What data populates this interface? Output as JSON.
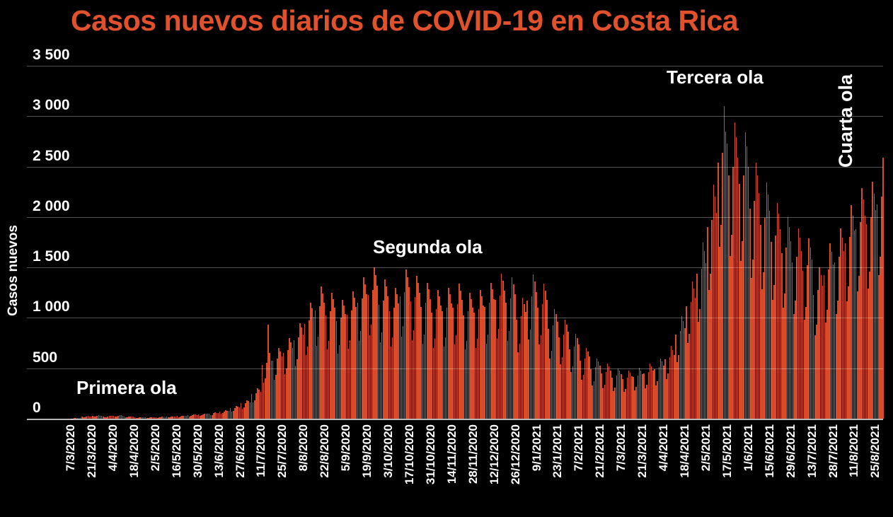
{
  "title": "Casos nuevos diarios de COVID-19 en Costa Rica",
  "colors": {
    "background": "#000000",
    "title": "#E0512C",
    "bar": "#D94A28",
    "text": "#FFFFFF",
    "gridline": "rgba(255,255,255,0.32)"
  },
  "chart_data": {
    "type": "bar",
    "title": "Casos nuevos diarios de COVID-19 en Costa Rica",
    "xlabel": "",
    "ylabel": "Casos nuevos",
    "ylim": [
      0,
      3500
    ],
    "grid": true,
    "legend": "none",
    "y_ticks": [
      {
        "label": "3 500",
        "value": 3500
      },
      {
        "label": "3 000",
        "value": 3000
      },
      {
        "label": "2 500",
        "value": 2500
      },
      {
        "label": "2 000",
        "value": 2000
      },
      {
        "label": "1 500",
        "value": 1500
      },
      {
        "label": "1 000",
        "value": 1000
      },
      {
        "label": "500",
        "value": 500
      },
      {
        "label": "0",
        "value": 0
      }
    ],
    "x_tick_every": 14,
    "x_tick_labels": [
      "7/3/2020",
      "21/3/2020",
      "4/4/2020",
      "18/4/2020",
      "2/5/2020",
      "16/5/2020",
      "30/5/2020",
      "13/6/2020",
      "27/6/2020",
      "11/7/2020",
      "25/7/2020",
      "8/8/2020",
      "22/8/2020",
      "5/9/2020",
      "19/9/2020",
      "3/10/2020",
      "17/10/2020",
      "31/10/2020",
      "14/11/2020",
      "28/11/2020",
      "12/12/2020",
      "26/12/2020",
      "9/1/2021",
      "23/1/2021",
      "7/2/2021",
      "21/2/2021",
      "7/3/2021",
      "21/3/2021",
      "4/4/2021",
      "18/4/2021",
      "2/5/2021",
      "17/5/2021",
      "1/6/2021",
      "15/6/2021",
      "29/6/2021",
      "13/7/2021",
      "28/7/2021",
      "11/8/2021",
      "25/8/2021"
    ],
    "start_date": "7/3/2020",
    "end_date": "25/8/2021",
    "annotations": [
      {
        "text": "Primera ola",
        "orientation": "horizontal"
      },
      {
        "text": "Segunda ola",
        "orientation": "horizontal"
      },
      {
        "text": "Tercera ola",
        "orientation": "horizontal"
      },
      {
        "text": "Cuarta ola",
        "orientation": "vertical"
      }
    ],
    "values": [
      1,
      2,
      4,
      5,
      9,
      8,
      7,
      18,
      12,
      14,
      20,
      25,
      24,
      22,
      26,
      18,
      20,
      27,
      32,
      30,
      28,
      23,
      15,
      17,
      24,
      28,
      26,
      25,
      28,
      19,
      21,
      29,
      34,
      32,
      30,
      18,
      12,
      14,
      19,
      22,
      21,
      19,
      13,
      9,
      10,
      14,
      16,
      15,
      14,
      11,
      7,
      8,
      11,
      13,
      12,
      11,
      15,
      10,
      11,
      15,
      18,
      17,
      16,
      20,
      13,
      15,
      20,
      24,
      23,
      21,
      25,
      17,
      19,
      26,
      30,
      29,
      26,
      34,
      23,
      26,
      36,
      42,
      40,
      37,
      43,
      29,
      32,
      44,
      52,
      49,
      46,
      51,
      34,
      38,
      53,
      62,
      59,
      55,
      70,
      47,
      53,
      72,
      85,
      81,
      75,
      103,
      69,
      78,
      106,
      125,
      119,
      110,
      152,
      102,
      115,
      157,
      185,
      176,
      163,
      246,
      165,
      186,
      255,
      300,
      285,
      264,
      533,
      358,
      403,
      553,
      930,
      650,
      572,
      574,
      385,
      434,
      595,
      700,
      665,
      616,
      656,
      440,
      496,
      680,
      800,
      760,
      704,
      779,
      523,
      589,
      808,
      950,
      903,
      836,
      943,
      633,
      713,
      978,
      1150,
      1093,
      1012,
      1074,
      721,
      812,
      1114,
      1310,
      1245,
      1153,
      1025,
      688,
      775,
      1063,
      1250,
      1188,
      1100,
      968,
      649,
      732,
      1003,
      1180,
      1121,
      1038,
      1033,
      693,
      781,
      1071,
      1260,
      1197,
      1109,
      1148,
      770,
      868,
      1190,
      1400,
      1330,
      1232,
      1230,
      825,
      930,
      1275,
      1500,
      1425,
      1320,
      1132,
      759,
      856,
      1173,
      1380,
      1311,
      1214,
      1066,
      715,
      806,
      1105,
      1300,
      1235,
      1144,
      1214,
      814,
      918,
      1258,
      1480,
      1406,
      1302,
      1164,
      781,
      880,
      1207,
      1420,
      1349,
      1250,
      1107,
      743,
      837,
      1148,
      1350,
      1283,
      1188,
      1050,
      704,
      794,
      1088,
      1280,
      1216,
      1126,
      1066,
      715,
      806,
      1105,
      1300,
      1235,
      1144,
      1099,
      737,
      831,
      1139,
      1340,
      1273,
      1179,
      1025,
      688,
      775,
      1063,
      1250,
      1188,
      1100,
      1050,
      704,
      794,
      1088,
      1280,
      1216,
      1126,
      1107,
      743,
      837,
      1148,
      1350,
      1283,
      1188,
      1181,
      792,
      893,
      1224,
      1440,
      1368,
      1267,
      1148,
      770,
      868,
      1190,
      1400,
      1330,
      1232,
      984,
      660,
      744,
      1020,
      1200,
      1140,
      1056,
      1173,
      787,
      887,
      1216,
      1430,
      1359,
      1258,
      1099,
      737,
      831,
      1139,
      1340,
      1273,
      1179,
      894,
      600,
      676,
      927,
      1090,
      1036,
      959,
      804,
      539,
      608,
      833,
      980,
      931,
      862,
      689,
      462,
      521,
      714,
      840,
      798,
      739,
      574,
      385,
      434,
      595,
      700,
      665,
      616,
      492,
      330,
      372,
      510,
      600,
      570,
      528,
      447,
      300,
      338,
      463,
      545,
      518,
      480,
      410,
      275,
      310,
      425,
      500,
      475,
      440,
      394,
      264,
      298,
      408,
      480,
      456,
      422,
      414,
      278,
      313,
      429,
      505,
      480,
      444,
      447,
      300,
      338,
      463,
      545,
      518,
      480,
      492,
      330,
      372,
      510,
      600,
      570,
      528,
      590,
      396,
      446,
      612,
      720,
      684,
      634,
      836,
      561,
      632,
      867,
      1020,
      969,
      898,
      1115,
      748,
      843,
      1156,
      1360,
      1292,
      1197,
      1435,
      963,
      1085,
      1488,
      1750,
      1663,
      1540,
      1902,
      1276,
      1438,
      1972,
      2320,
      2204,
      2042,
      2542,
      1705,
      1922,
      2635,
      3100,
      2850,
      2728,
      2411,
      1617,
      1823,
      2499,
      2940,
      2793,
      2587,
      2329,
      1562,
      1761,
      2414,
      2840,
      2698,
      2499,
      2083,
      1397,
      1575,
      2159,
      2540,
      2413,
      2235,
      1919,
      1287,
      1451,
      1989,
      2340,
      2223,
      2059,
      1755,
      1177,
      1327,
      1819,
      2140,
      2033,
      1883,
      1640,
      1100,
      1240,
      1700,
      2000,
      1900,
      1760,
      1550,
      1040,
      1172,
      1607,
      1890,
      1796,
      1663,
      1468,
      985,
      1110,
      1522,
      1790,
      1701,
      1575,
      1230,
      825,
      930,
      1275,
      1500,
      1425,
      1320,
      1427,
      957,
      1079,
      1479,
      1740,
      1653,
      1531,
      1550,
      1040,
      1172,
      1607,
      1890,
      1796,
      1663,
      1738,
      1166,
      1314,
      1802,
      2120,
      2014,
      1866,
      1878,
      1260,
      1420,
      1947,
      2290,
      2176,
      2015,
      1927,
      1293,
      1457,
      1998,
      2350,
      2233,
      2068,
      2124,
      1425,
      1606,
      2202,
      2590
    ]
  }
}
